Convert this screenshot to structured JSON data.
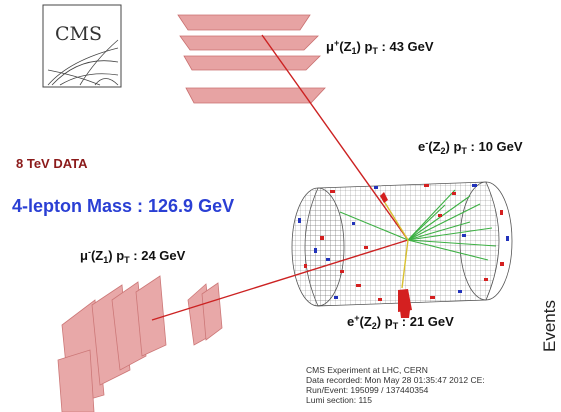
{
  "logo": {
    "text": "CMS"
  },
  "labels": {
    "data": "8 TeV DATA",
    "mass": "4-lepton Mass : 126.9 GeV",
    "mu_plus": {
      "pre": "μ",
      "sup": "+",
      "pre2": "(Z",
      "sub": "1",
      "post": ") p",
      "sub2": "T",
      "value": " : 43 GeV"
    },
    "e_minus": {
      "pre": "e",
      "sup": "-",
      "pre2": "(Z",
      "sub": "2",
      "post": ") p",
      "sub2": "T",
      "value": " : 10 GeV"
    },
    "mu_minus": {
      "pre": "μ",
      "sup": "-",
      "pre2": "(Z",
      "sub": "1",
      "post": ") p",
      "sub2": "T",
      "value": " : 24 GeV"
    },
    "e_plus": {
      "pre": "e",
      "sup": "+",
      "pre2": "(Z",
      "sub": "2",
      "post": ") p",
      "sub2": "T",
      "value": " : 21 GeV"
    }
  },
  "side_axis_label": "Events",
  "info": {
    "line1": "CMS Experiment at LHC, CERN",
    "line2": "Data recorded: Mon May 28 01:35:47 2012 CE:",
    "line3": "Run/Event: 195099 / 137440354",
    "line4": "Lumi section: 115"
  },
  "colors": {
    "muon_chamber": "#e59a9a",
    "track_muon": "#cc2222",
    "track_green": "#3cb043",
    "track_yellow": "#d8c030",
    "calo_red": "#d42020",
    "calo_blue": "#2233bb",
    "mesh": "#555555"
  }
}
